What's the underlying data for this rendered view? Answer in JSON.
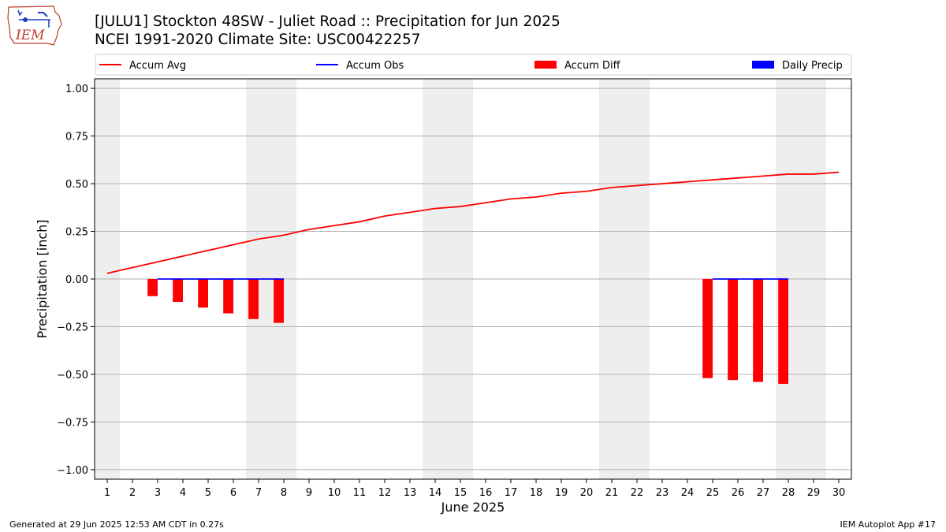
{
  "title_line1": "[JULU1] Stockton 48SW - Juliet Road :: Precipitation for Jun 2025",
  "title_line2": "NCEI 1991-2020 Climate Site: USC00422257",
  "footer_left": "Generated at 29 Jun 2025 12:53 AM CDT in 0.27s",
  "footer_right": "IEM Autoplot App #17",
  "logo_text": "IEM",
  "chart_data": {
    "type": "bar",
    "xlabel": "June 2025",
    "ylabel": "Precipitation [inch]",
    "xlim": [
      0.5,
      30.5
    ],
    "ylim": [
      -1.05,
      1.05
    ],
    "yticks": [
      -1.0,
      -0.75,
      -0.5,
      -0.25,
      0.0,
      0.25,
      0.5,
      0.75,
      1.0
    ],
    "ytick_labels": [
      "−1.00",
      "−0.75",
      "−0.50",
      "−0.25",
      "0.00",
      "0.25",
      "0.50",
      "0.75",
      "1.00"
    ],
    "xticks": [
      1,
      2,
      3,
      4,
      5,
      6,
      7,
      8,
      9,
      10,
      11,
      12,
      13,
      14,
      15,
      16,
      17,
      18,
      19,
      20,
      21,
      22,
      23,
      24,
      25,
      26,
      27,
      28,
      29,
      30
    ],
    "grid": "horizontal",
    "legend_position": "top",
    "weekend_days": [
      1,
      7,
      8,
      14,
      15,
      21,
      22,
      28,
      29
    ],
    "series": [
      {
        "name": "Accum Avg",
        "kind": "line",
        "color": "#ff0000",
        "x": [
          1,
          2,
          3,
          4,
          5,
          6,
          7,
          8,
          9,
          10,
          11,
          12,
          13,
          14,
          15,
          16,
          17,
          18,
          19,
          20,
          21,
          22,
          23,
          24,
          25,
          26,
          27,
          28,
          29,
          30
        ],
        "values": [
          0.03,
          0.06,
          0.09,
          0.12,
          0.15,
          0.18,
          0.21,
          0.23,
          0.26,
          0.28,
          0.3,
          0.33,
          0.35,
          0.37,
          0.38,
          0.4,
          0.42,
          0.43,
          0.45,
          0.46,
          0.48,
          0.49,
          0.5,
          0.51,
          0.52,
          0.53,
          0.54,
          0.55,
          0.55,
          0.56
        ]
      },
      {
        "name": "Accum Obs",
        "kind": "line",
        "color": "#0000ff",
        "segments": [
          {
            "x": [
              3,
              4,
              5,
              6,
              7,
              8
            ],
            "values": [
              0,
              0,
              0,
              0,
              0,
              0
            ]
          },
          {
            "x": [
              25,
              26,
              27,
              28
            ],
            "values": [
              0,
              0,
              0,
              0
            ]
          }
        ]
      },
      {
        "name": "Accum Diff",
        "kind": "bar",
        "color": "#ff0000",
        "x": [
          3,
          4,
          5,
          6,
          7,
          8,
          25,
          26,
          27,
          28
        ],
        "values": [
          -0.09,
          -0.12,
          -0.15,
          -0.18,
          -0.21,
          -0.23,
          -0.52,
          -0.53,
          -0.54,
          -0.55
        ]
      },
      {
        "name": "Daily Precip",
        "kind": "bar",
        "color": "#0000ff",
        "x": [
          3,
          4,
          5,
          6,
          7,
          8,
          25,
          26,
          27,
          28
        ],
        "values": [
          0,
          0,
          0,
          0,
          0,
          0,
          0,
          0,
          0,
          0
        ]
      }
    ]
  }
}
